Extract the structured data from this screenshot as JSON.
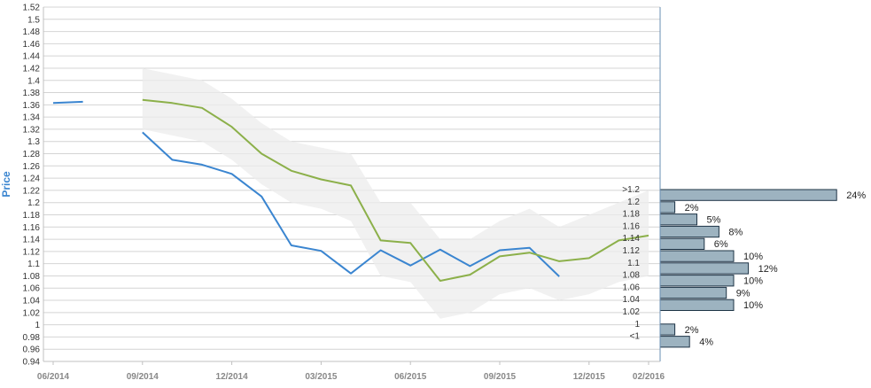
{
  "chart_data": {
    "type": "line",
    "ylabel": "Price",
    "ylim": [
      0.94,
      1.52
    ],
    "y_ticks": [
      "0.94",
      "0.96",
      "0.98",
      "1",
      "1.02",
      "1.04",
      "1.06",
      "1.08",
      "1.1",
      "1.12",
      "1.14",
      "1.16",
      "1.18",
      "1.2",
      "1.22",
      "1.24",
      "1.26",
      "1.28",
      "1.3",
      "1.32",
      "1.34",
      "1.36",
      "1.38",
      "1.4",
      "1.42",
      "1.44",
      "1.46",
      "1.48",
      "1.5",
      "1.52"
    ],
    "x_ticks": [
      "06/2014",
      "09/2014",
      "12/2014",
      "03/2015",
      "06/2015",
      "09/2015",
      "12/2015",
      "02/2016"
    ],
    "x_periods": [
      "06/2014",
      "07/2014",
      "08/2014",
      "09/2014",
      "10/2014",
      "11/2014",
      "12/2014",
      "01/2015",
      "02/2015",
      "03/2015",
      "04/2015",
      "05/2015",
      "06/2015",
      "07/2015",
      "08/2015",
      "09/2015",
      "10/2015",
      "11/2015",
      "12/2015",
      "01/2016",
      "02/2016"
    ],
    "grid": true,
    "colors": {
      "actual": "#3a85d0",
      "forecast": "#8cb04a",
      "band": "#ececec",
      "bar_fill": "#9db3c0",
      "bar_stroke": "#1e3446",
      "axis_label": "#3a85d0"
    },
    "series": [
      {
        "key": "actual",
        "values": [
          1.363,
          1.365,
          null,
          1.315,
          1.27,
          1.262,
          1.247,
          1.21,
          1.13,
          1.121,
          1.084,
          1.122,
          1.097,
          1.123,
          1.096,
          1.122,
          1.126,
          1.079,
          null,
          null,
          null
        ]
      },
      {
        "key": "forecast",
        "values": [
          null,
          null,
          null,
          1.368,
          1.363,
          1.355,
          1.324,
          1.28,
          1.252,
          1.238,
          1.228,
          1.138,
          1.134,
          1.072,
          1.082,
          1.112,
          1.118,
          1.104,
          1.109,
          1.138,
          1.146
        ]
      }
    ],
    "band": {
      "upper": [
        null,
        null,
        null,
        1.42,
        1.41,
        1.4,
        1.37,
        1.33,
        1.3,
        1.29,
        1.28,
        1.2,
        1.2,
        1.14,
        1.14,
        1.17,
        1.19,
        1.16,
        1.18,
        1.2,
        1.22
      ],
      "lower": [
        null,
        null,
        null,
        1.32,
        1.31,
        1.3,
        1.27,
        1.23,
        1.2,
        1.19,
        1.17,
        1.08,
        1.07,
        1.01,
        1.02,
        1.05,
        1.06,
        1.04,
        1.05,
        1.07,
        1.08
      ]
    },
    "distribution": {
      "categories": [
        ">1.2",
        "1.2",
        "1.18",
        "1.16",
        "1.14",
        "1.12",
        "1.1",
        "1.08",
        "1.06",
        "1.04",
        "1.02",
        "1",
        "<1"
      ],
      "values": [
        24,
        2,
        5,
        8,
        6,
        10,
        12,
        10,
        9,
        10,
        null,
        2,
        4
      ],
      "labels": [
        "24%",
        "2%",
        "5%",
        "8%",
        "6%",
        "10%",
        "12%",
        "10%",
        "9%",
        "10%",
        "",
        "2%",
        "4%"
      ]
    }
  }
}
